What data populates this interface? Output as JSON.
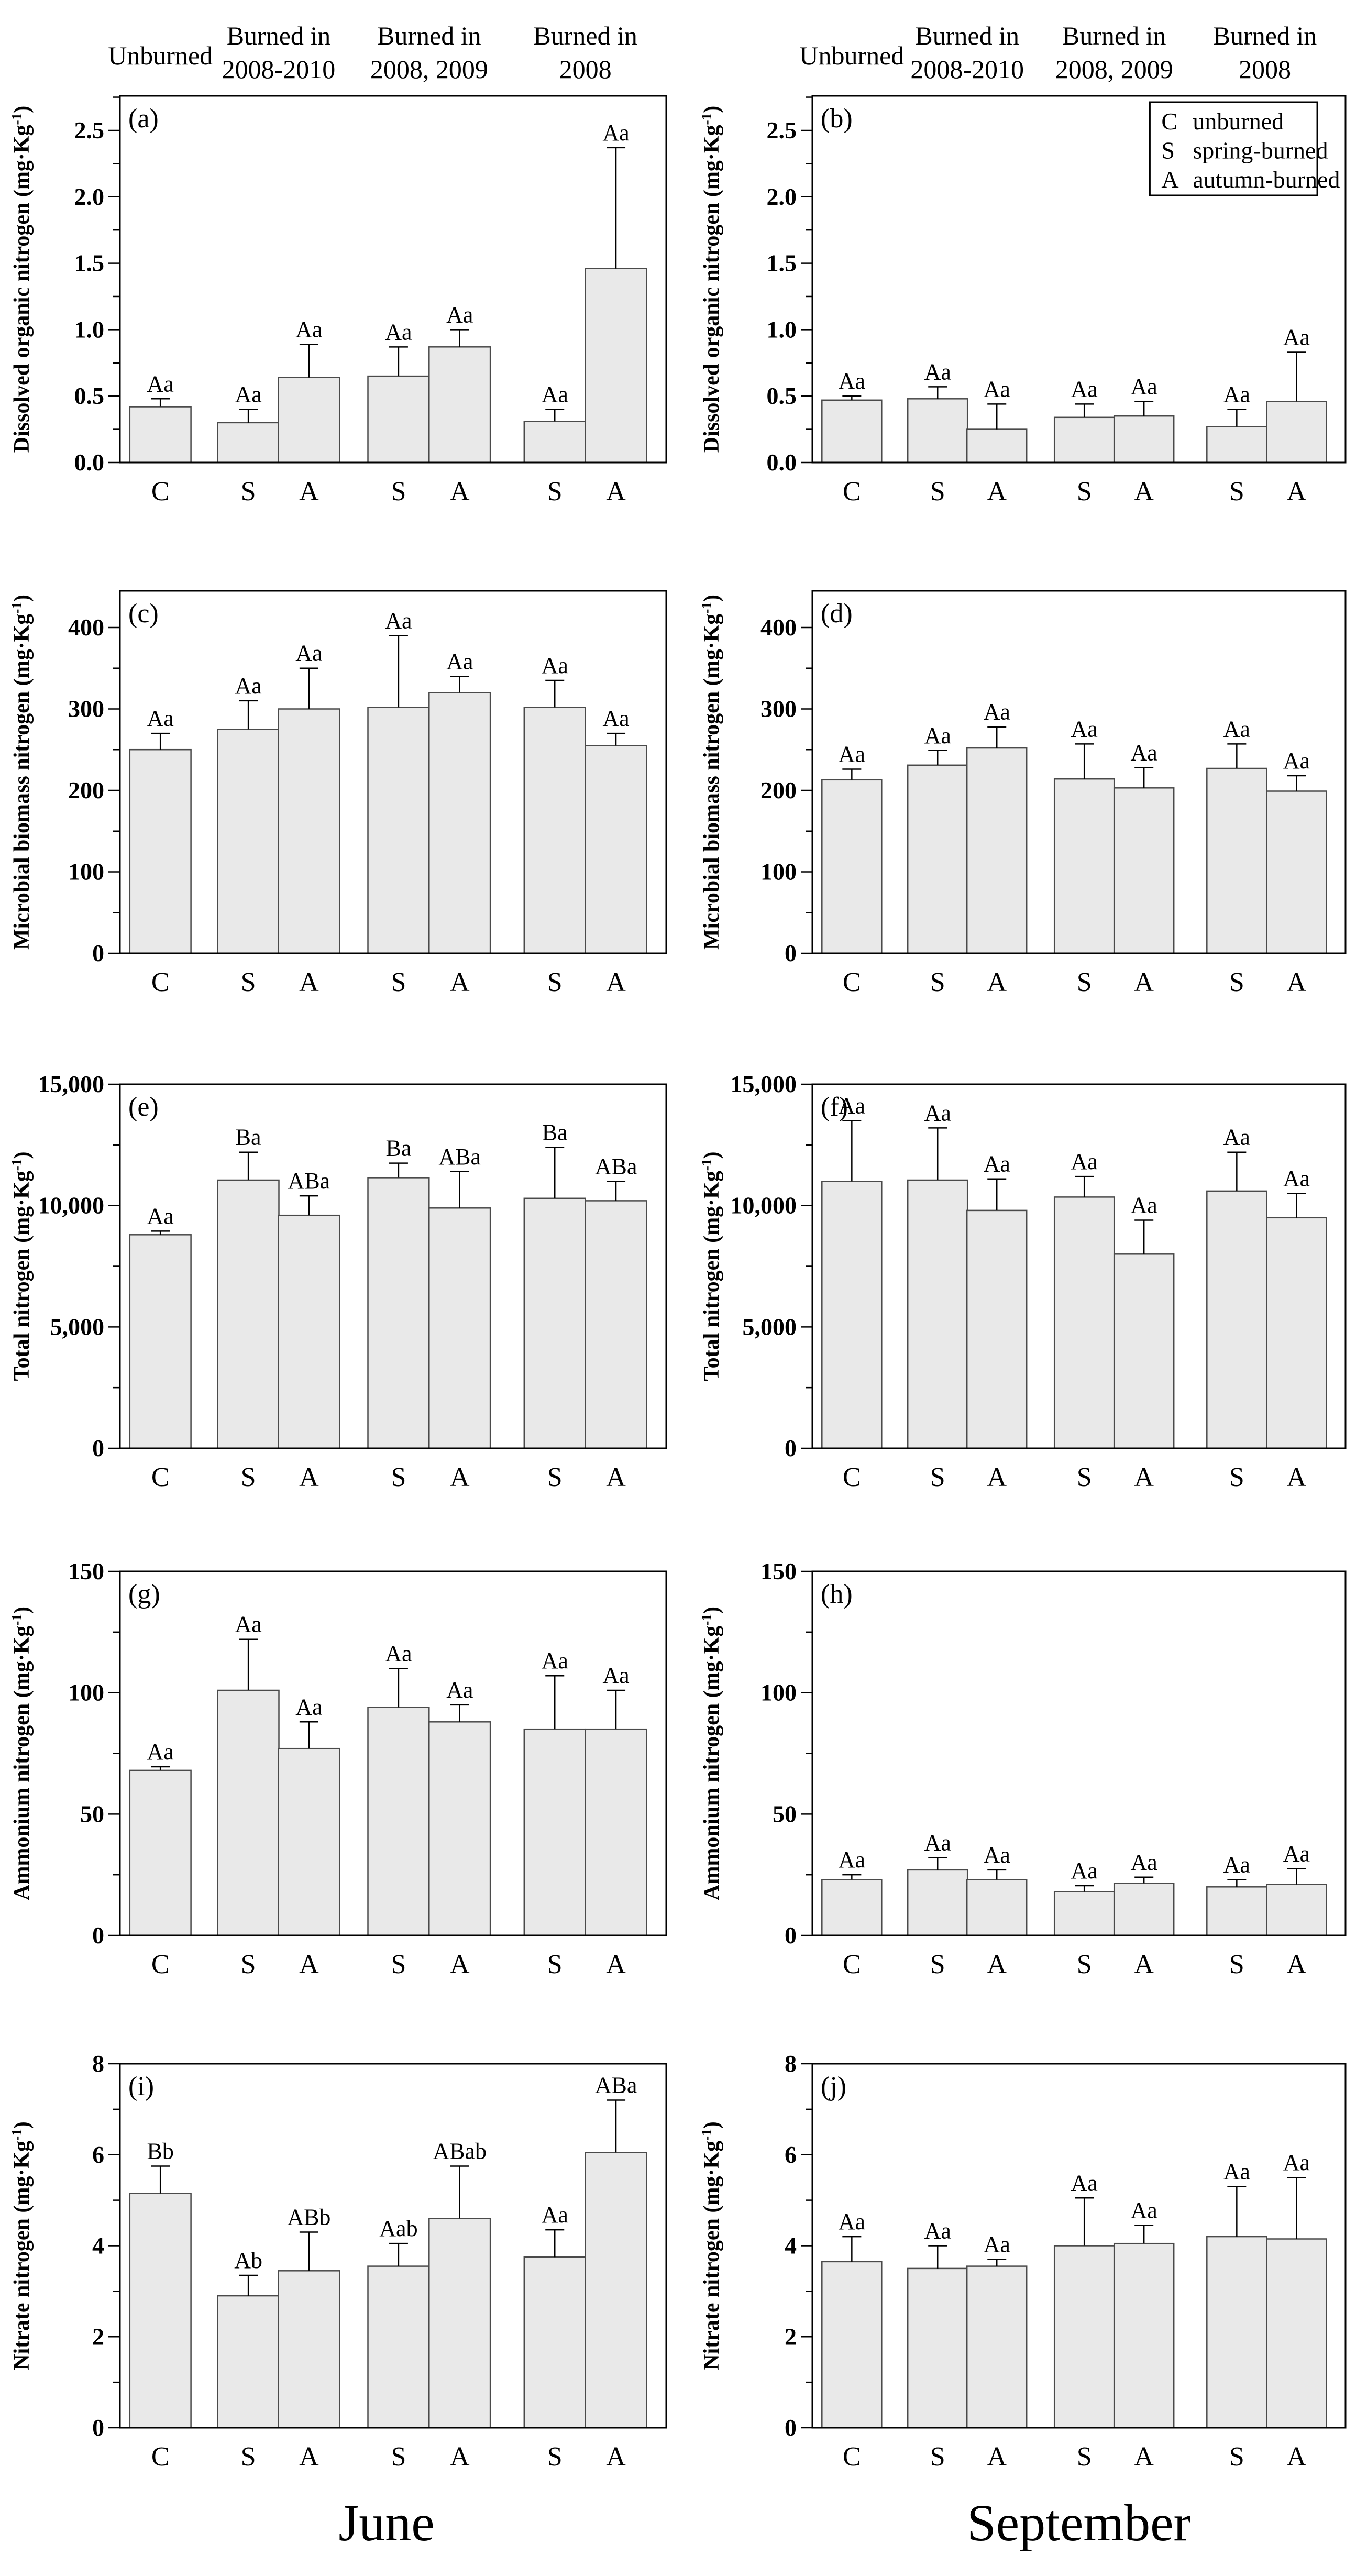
{
  "figure": {
    "background": "#ffffff",
    "months": [
      {
        "label": "June",
        "column": "left"
      },
      {
        "label": "September",
        "column": "right"
      }
    ],
    "group_headers": {
      "left": [
        {
          "lines": [
            "Unburned"
          ]
        },
        {
          "lines": [
            "Burned in",
            "2008-2010"
          ]
        },
        {
          "lines": [
            "Burned in",
            "2008, 2009"
          ]
        },
        {
          "lines": [
            "Burned in",
            "2008"
          ]
        }
      ],
      "right": [
        {
          "lines": [
            "Unburned"
          ]
        },
        {
          "lines": [
            "Burned in",
            "2008-2010"
          ]
        },
        {
          "lines": [
            "Burned in",
            "2008, 2009"
          ]
        },
        {
          "lines": [
            "Burned in",
            "2008"
          ]
        }
      ]
    },
    "legend": {
      "shown_in_panel": "b",
      "entries": [
        {
          "key": "C",
          "label": "unburned"
        },
        {
          "key": "S",
          "label": "spring-burned"
        },
        {
          "key": "A",
          "label": "autumn-burned"
        }
      ]
    },
    "colors": {
      "bar_fill": "#e9e9e9",
      "bar_stroke": "#4a4a4a",
      "axis": "#000000",
      "text": "#000000",
      "background": "#ffffff"
    }
  },
  "chart_data": [
    {
      "id": "a",
      "panel": "(a)",
      "type": "bar",
      "column": "left",
      "row": 0,
      "ylabel": "Dissolved organic nitrogen (mg·Kg⁻¹)",
      "categories": [
        "C",
        "S",
        "A",
        "S",
        "A",
        "S",
        "A"
      ],
      "values": [
        0.42,
        0.3,
        0.64,
        0.65,
        0.87,
        0.31,
        1.46
      ],
      "errors": [
        0.06,
        0.1,
        0.25,
        0.22,
        0.13,
        0.09,
        0.91
      ],
      "sig_labels": [
        "Aa",
        "Aa",
        "Aa",
        "Aa",
        "Aa",
        "Aa",
        "Aa"
      ],
      "ymax": 2.76,
      "yticks": [
        0,
        0.5,
        1.0,
        1.5,
        2.0,
        2.5
      ],
      "ytick_labels": [
        "0.0",
        "0.5",
        "1.0",
        "1.5",
        "2.0",
        "2.5"
      ],
      "minor_step": 0.25,
      "legend": false
    },
    {
      "id": "b",
      "panel": "(b)",
      "type": "bar",
      "column": "right",
      "row": 0,
      "ylabel": "Dissolved organic nitrogen (mg·Kg⁻¹)",
      "categories": [
        "C",
        "S",
        "A",
        "S",
        "A",
        "S",
        "A"
      ],
      "values": [
        0.47,
        0.48,
        0.25,
        0.34,
        0.35,
        0.27,
        0.46
      ],
      "errors": [
        0.03,
        0.09,
        0.19,
        0.1,
        0.11,
        0.13,
        0.37
      ],
      "sig_labels": [
        "Aa",
        "Aa",
        "Aa",
        "Aa",
        "Aa",
        "Aa",
        "Aa"
      ],
      "ymax": 2.76,
      "yticks": [
        0,
        0.5,
        1.0,
        1.5,
        2.0,
        2.5
      ],
      "ytick_labels": [
        "0.0",
        "0.5",
        "1.0",
        "1.5",
        "2.0",
        "2.5"
      ],
      "minor_step": 0.25,
      "legend": true
    },
    {
      "id": "c",
      "panel": "(c)",
      "type": "bar",
      "column": "left",
      "row": 1,
      "ylabel": "Microbial biomass nitrogen (mg·Kg⁻¹)",
      "categories": [
        "C",
        "S",
        "A",
        "S",
        "A",
        "S",
        "A"
      ],
      "values": [
        250,
        275,
        300,
        302,
        320,
        302,
        255
      ],
      "errors": [
        20,
        35,
        50,
        88,
        20,
        33,
        15
      ],
      "sig_labels": [
        "Aa",
        "Aa",
        "Aa",
        "Aa",
        "Aa",
        "Aa",
        "Aa"
      ],
      "ymax": 445,
      "yticks": [
        0,
        100,
        200,
        300,
        400
      ],
      "ytick_labels": [
        "0",
        "100",
        "200",
        "300",
        "400"
      ],
      "minor_step": 50,
      "legend": false
    },
    {
      "id": "d",
      "panel": "(d)",
      "type": "bar",
      "column": "right",
      "row": 1,
      "ylabel": "Microbial biomass nitrogen (mg·Kg⁻¹)",
      "categories": [
        "C",
        "S",
        "A",
        "S",
        "A",
        "S",
        "A"
      ],
      "values": [
        213,
        231,
        252,
        214,
        203,
        227,
        199
      ],
      "errors": [
        13,
        18,
        26,
        43,
        25,
        30,
        19
      ],
      "sig_labels": [
        "Aa",
        "Aa",
        "Aa",
        "Aa",
        "Aa",
        "Aa",
        "Aa"
      ],
      "ymax": 445,
      "yticks": [
        0,
        100,
        200,
        300,
        400
      ],
      "ytick_labels": [
        "0",
        "100",
        "200",
        "300",
        "400"
      ],
      "minor_step": 50,
      "legend": false
    },
    {
      "id": "e",
      "panel": "(e)",
      "type": "bar",
      "column": "left",
      "row": 2,
      "ylabel": "Total nitrogen (mg·Kg⁻¹)",
      "categories": [
        "C",
        "S",
        "A",
        "S",
        "A",
        "S",
        "A"
      ],
      "values": [
        8800,
        11050,
        9600,
        11150,
        9900,
        10300,
        10200
      ],
      "errors": [
        150,
        1150,
        800,
        600,
        1500,
        2100,
        800
      ],
      "sig_labels": [
        "Aa",
        "Ba",
        "ABa",
        "Ba",
        "ABa",
        "Ba",
        "ABa"
      ],
      "ymax": 15000,
      "yticks": [
        0,
        5000,
        10000,
        15000
      ],
      "ytick_labels": [
        "0",
        "5,000",
        "10,000",
        "15,000"
      ],
      "minor_step": 2500,
      "legend": false
    },
    {
      "id": "f",
      "panel": "(f)",
      "type": "bar",
      "column": "right",
      "row": 2,
      "ylabel": "Total nitrogen (mg·Kg⁻¹)",
      "categories": [
        "C",
        "S",
        "A",
        "S",
        "A",
        "S",
        "A"
      ],
      "values": [
        11000,
        11050,
        9800,
        10350,
        8000,
        10600,
        9500
      ],
      "errors": [
        2500,
        2150,
        1300,
        850,
        1400,
        1600,
        1000
      ],
      "sig_labels": [
        "Aa",
        "Aa",
        "Aa",
        "Aa",
        "Aa",
        "Aa",
        "Aa"
      ],
      "ymax": 15000,
      "yticks": [
        0,
        5000,
        10000,
        15000
      ],
      "ytick_labels": [
        "0",
        "5,000",
        "10,000",
        "15,000"
      ],
      "minor_step": 2500,
      "legend": false
    },
    {
      "id": "g",
      "panel": "(g)",
      "type": "bar",
      "column": "left",
      "row": 3,
      "ylabel": "Ammonium nitrogen (mg·Kg⁻¹)",
      "categories": [
        "C",
        "S",
        "A",
        "S",
        "A",
        "S",
        "A"
      ],
      "values": [
        68,
        101,
        77,
        94,
        88,
        85,
        85
      ],
      "errors": [
        1.5,
        21,
        11,
        16,
        7,
        22,
        16
      ],
      "sig_labels": [
        "Aa",
        "Aa",
        "Aa",
        "Aa",
        "Aa",
        "Aa",
        "Aa"
      ],
      "ymax": 150,
      "yticks": [
        0,
        50,
        100,
        150
      ],
      "ytick_labels": [
        "0",
        "50",
        "100",
        "150"
      ],
      "minor_step": 25,
      "legend": false
    },
    {
      "id": "h",
      "panel": "(h)",
      "type": "bar",
      "column": "right",
      "row": 3,
      "ylabel": "Ammonium nitrogen (mg·Kg⁻¹)",
      "categories": [
        "C",
        "S",
        "A",
        "S",
        "A",
        "S",
        "A"
      ],
      "values": [
        23,
        27,
        23,
        18,
        21.5,
        20,
        21
      ],
      "errors": [
        2,
        5,
        4,
        2.5,
        2.5,
        3,
        6.5
      ],
      "sig_labels": [
        "Aa",
        "Aa",
        "Aa",
        "Aa",
        "Aa",
        "Aa",
        "Aa"
      ],
      "ymax": 150,
      "yticks": [
        0,
        50,
        100,
        150
      ],
      "ytick_labels": [
        "0",
        "50",
        "100",
        "150"
      ],
      "minor_step": 25,
      "legend": false
    },
    {
      "id": "i",
      "panel": "(i)",
      "type": "bar",
      "column": "left",
      "row": 4,
      "ylabel": "Nitrate nitrogen (mg·Kg⁻¹)",
      "categories": [
        "C",
        "S",
        "A",
        "S",
        "A",
        "S",
        "A"
      ],
      "values": [
        5.15,
        2.9,
        3.45,
        3.55,
        4.6,
        3.75,
        6.05
      ],
      "errors": [
        0.6,
        0.45,
        0.85,
        0.5,
        1.15,
        0.6,
        1.15
      ],
      "sig_labels": [
        "Bb",
        "Ab",
        "ABb",
        "Aab",
        "ABab",
        "Aa",
        "ABa"
      ],
      "ymax": 8,
      "yticks": [
        0,
        2,
        4,
        6,
        8
      ],
      "ytick_labels": [
        "0",
        "2",
        "4",
        "6",
        "8"
      ],
      "minor_step": 1,
      "legend": false
    },
    {
      "id": "j",
      "panel": "(j)",
      "type": "bar",
      "column": "right",
      "row": 4,
      "ylabel": "Nitrate nitrogen (mg·Kg⁻¹)",
      "categories": [
        "C",
        "S",
        "A",
        "S",
        "A",
        "S",
        "A"
      ],
      "values": [
        3.65,
        3.5,
        3.55,
        4.0,
        4.05,
        4.2,
        4.15
      ],
      "errors": [
        0.55,
        0.5,
        0.15,
        1.05,
        0.4,
        1.1,
        1.35
      ],
      "sig_labels": [
        "Aa",
        "Aa",
        "Aa",
        "Aa",
        "Aa",
        "Aa",
        "Aa"
      ],
      "ymax": 8,
      "yticks": [
        0,
        2,
        4,
        6,
        8
      ],
      "ytick_labels": [
        "0",
        "2",
        "4",
        "6",
        "8"
      ],
      "minor_step": 1,
      "legend": false
    }
  ]
}
